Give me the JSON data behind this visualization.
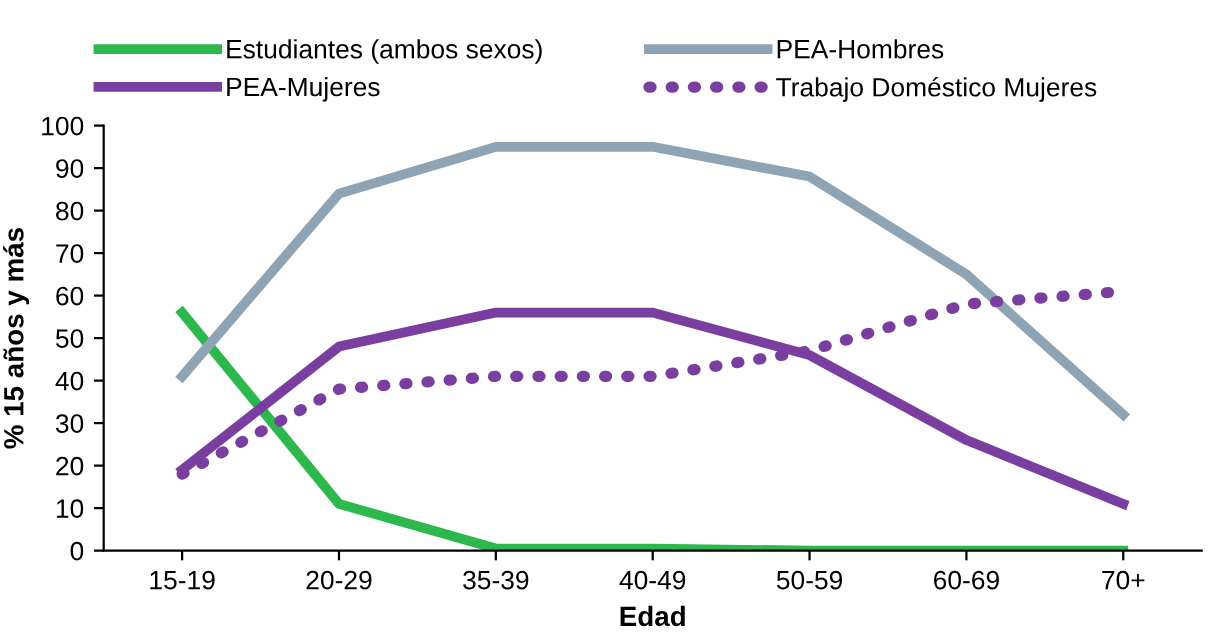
{
  "chart_data": {
    "type": "line",
    "xlabel": "Edad",
    "ylabel": "% 15 años y más",
    "categories": [
      "15-19",
      "20-29",
      "35-39",
      "40-49",
      "50-59",
      "60-69",
      "70+"
    ],
    "series": [
      {
        "name": "Estudiantes (ambos sexos)",
        "color": "#2db84d",
        "values": [
          56,
          11,
          0.5,
          0.5,
          0,
          0,
          0
        ]
      },
      {
        "name": "PEA-Mujeres",
        "color": "#7a3ea0",
        "values": [
          19,
          48,
          56,
          56,
          46,
          26,
          11
        ]
      },
      {
        "name": "PEA-Hombres",
        "color": "#8ea3b3",
        "values": [
          41,
          84,
          95,
          95,
          88,
          65,
          32
        ]
      },
      {
        "name": "Trabajo Doméstico Mujeres",
        "color": "#7a3ea0",
        "line_style": "dotted",
        "values": [
          18,
          38,
          41,
          41,
          47,
          58,
          61
        ]
      }
    ],
    "ylim": [
      0,
      100
    ],
    "yticks": [
      0,
      10,
      20,
      30,
      40,
      50,
      60,
      70,
      80,
      90,
      100
    ],
    "legend": "top",
    "marker": "none",
    "line_style": "solid",
    "grid": false
  }
}
